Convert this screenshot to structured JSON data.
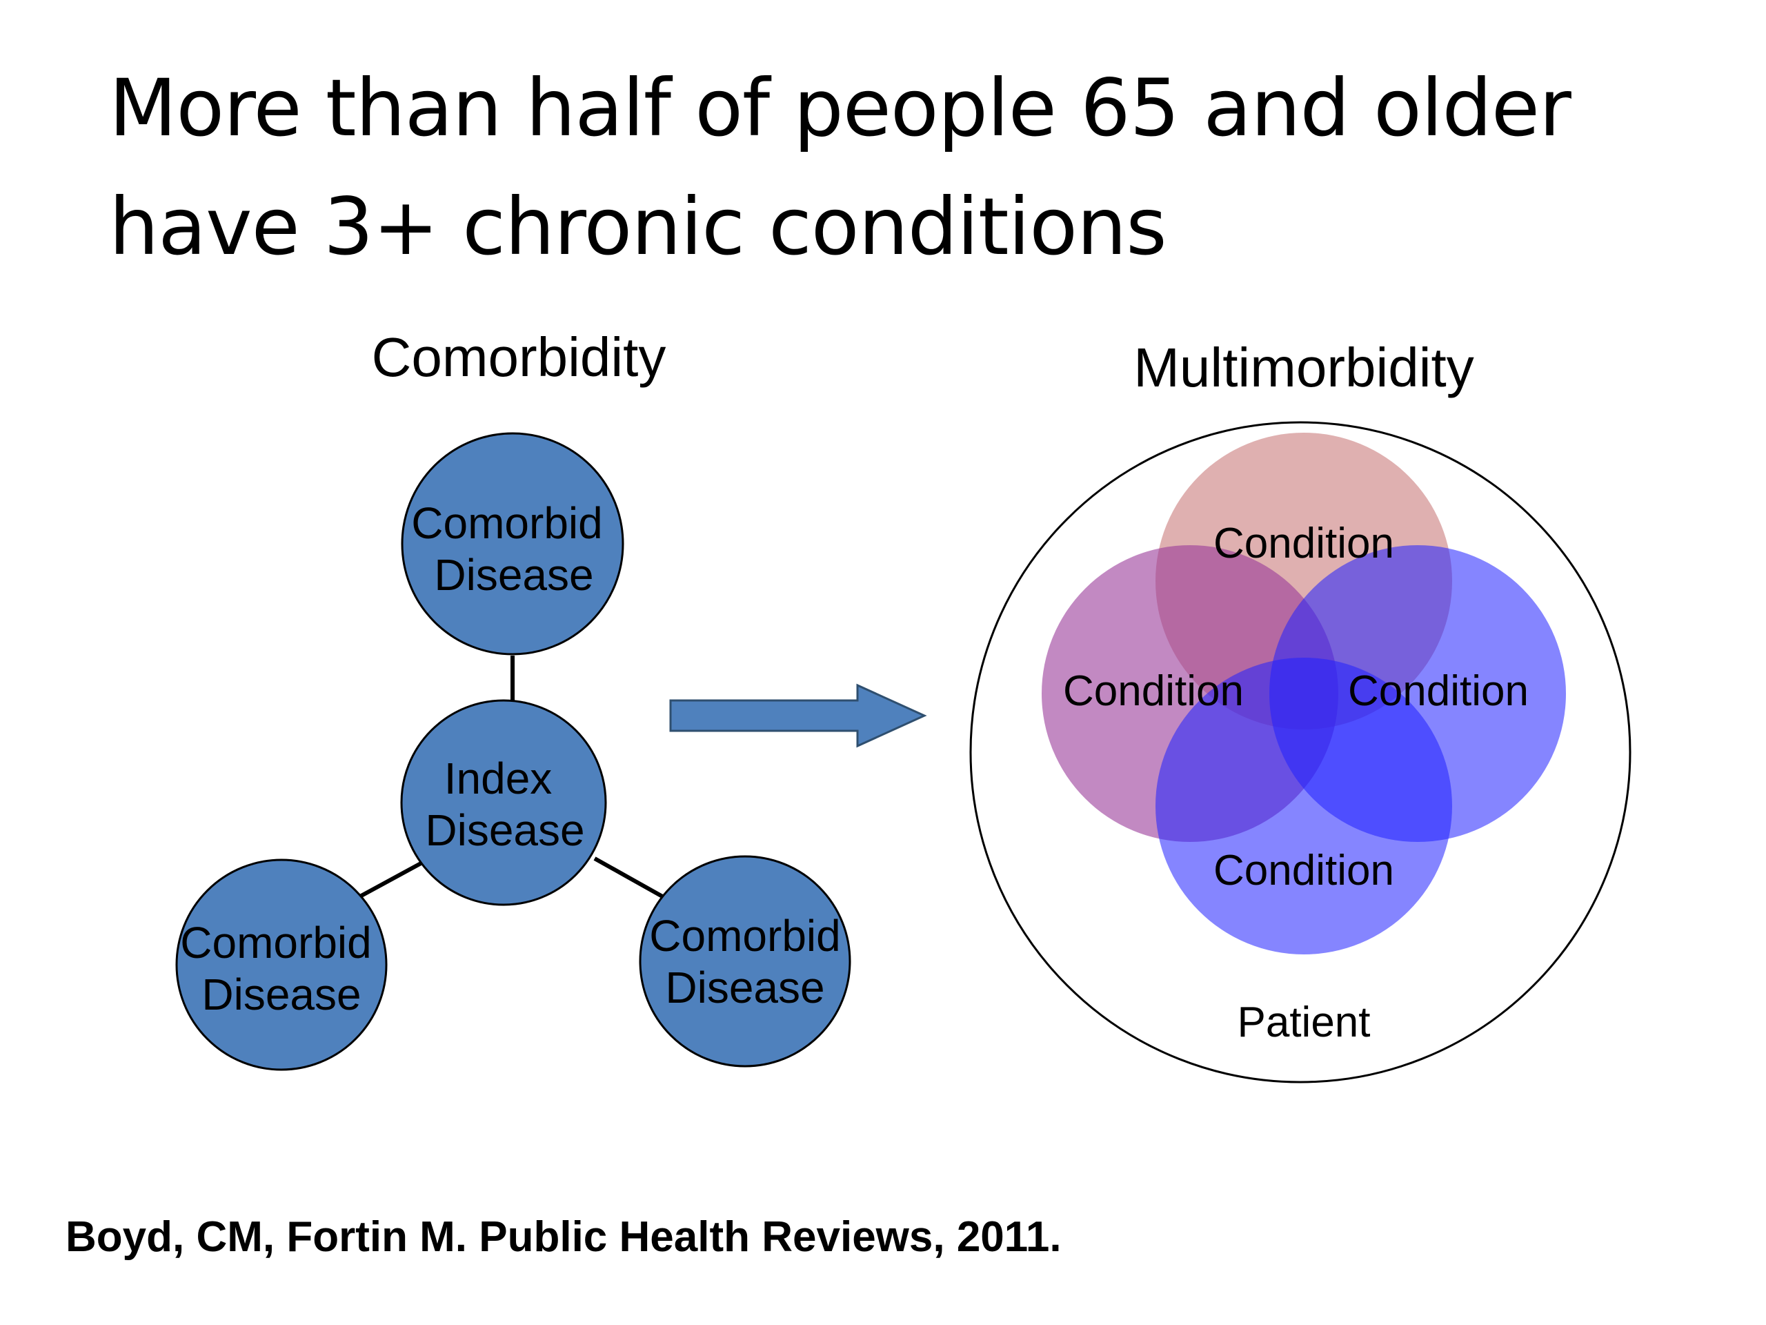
{
  "title": {
    "line1": "More than half of people 65 and older",
    "line2": "have 3+ chronic conditions"
  },
  "comorbidity": {
    "heading": "Comorbidity",
    "node_color": "#4f81bd",
    "index_node": {
      "line1": "Index",
      "line2": "Disease"
    },
    "comorbid_nodes": [
      {
        "line1": "Comorbid",
        "line2": "Disease"
      },
      {
        "line1": "Comorbid",
        "line2": "Disease"
      },
      {
        "line1": "Comorbid",
        "line2": "Disease"
      }
    ]
  },
  "arrow": {
    "color": "#4f81bd",
    "icon": "right-arrow-icon"
  },
  "multimorbidity": {
    "heading": "Multimorbidity",
    "patient_label": "Patient",
    "conditions": [
      {
        "label": "Condition",
        "color": "#c97b7b"
      },
      {
        "label": "Condition",
        "color": "#9a3a9a"
      },
      {
        "label": "Condition",
        "color": "#2020ff"
      },
      {
        "label": "Condition",
        "color": "#2020ff"
      }
    ]
  },
  "citation": "Boyd, CM, Fortin M.  Public Health Reviews, 2011."
}
